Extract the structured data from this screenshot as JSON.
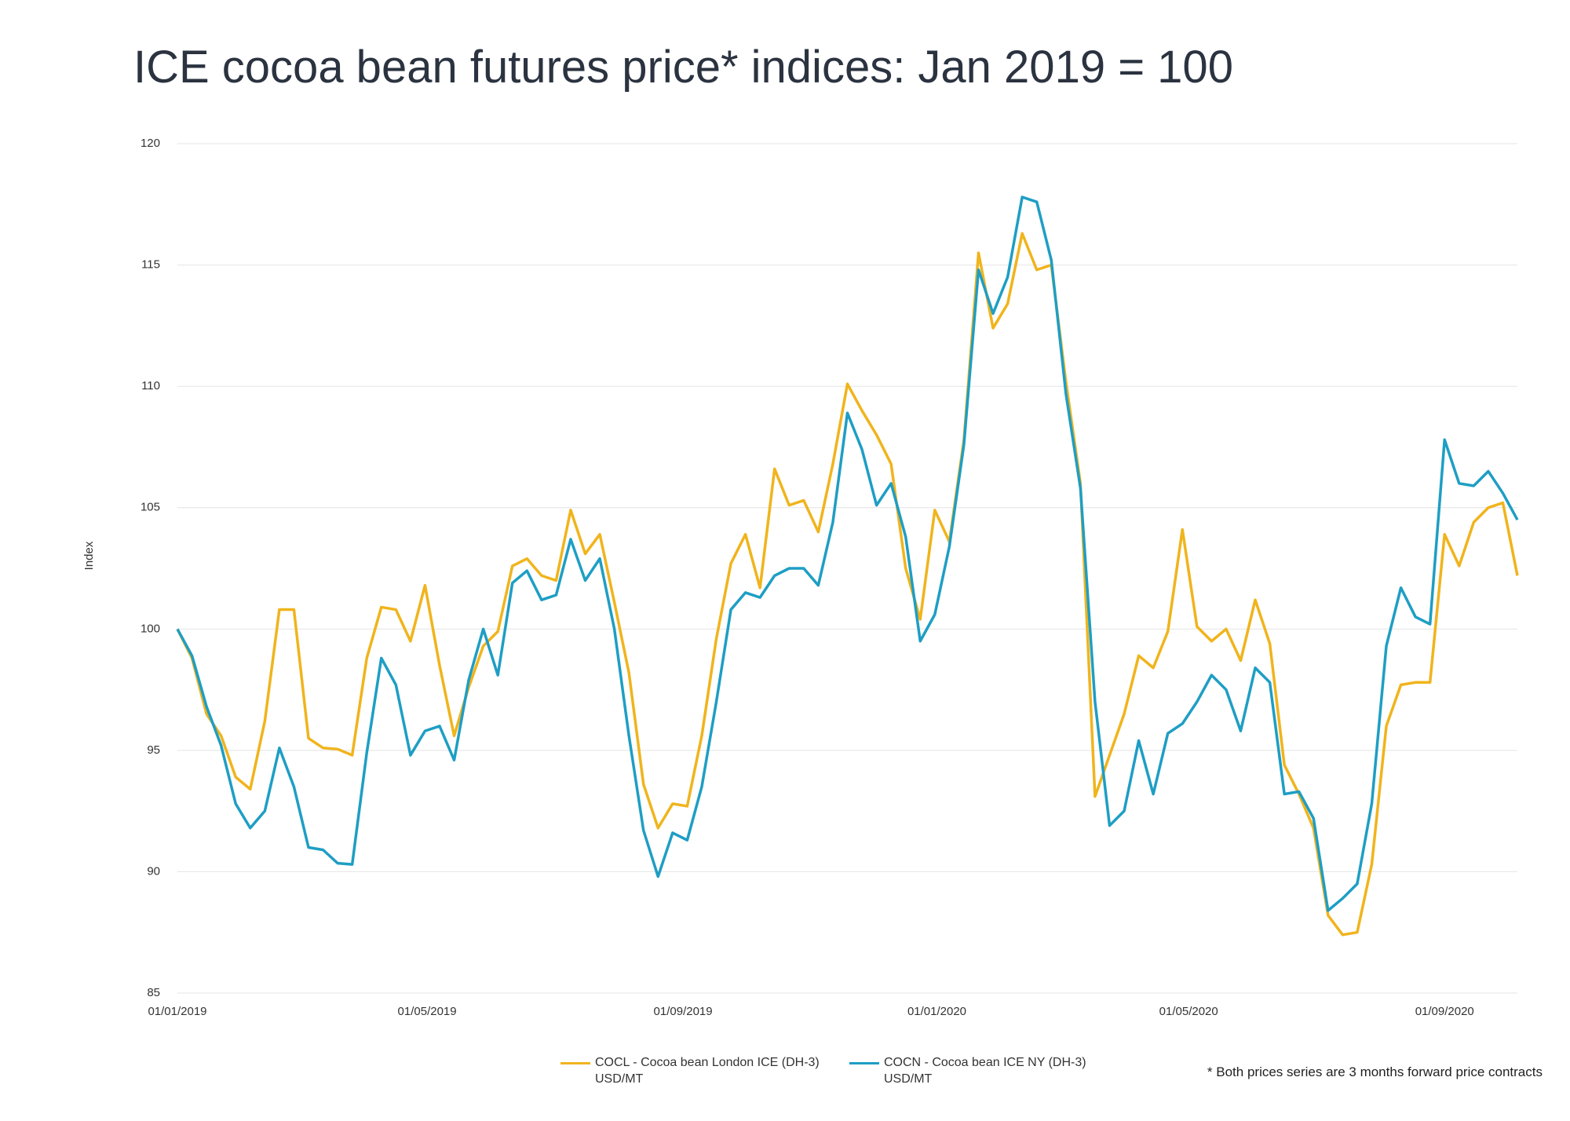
{
  "chart_data": {
    "type": "line",
    "title": "ICE cocoa bean futures price* indices: Jan 2019 = 100",
    "ylabel": "Index",
    "footnote": "* Both prices series are 3 months forward price contracts",
    "x": [
      "01/01/2019",
      "08/01/2019",
      "15/01/2019",
      "22/01/2019",
      "29/01/2019",
      "05/02/2019",
      "12/02/2019",
      "19/02/2019",
      "26/02/2019",
      "05/03/2019",
      "12/03/2019",
      "19/03/2019",
      "26/03/2019",
      "02/04/2019",
      "09/04/2019",
      "16/04/2019",
      "23/04/2019",
      "30/04/2019",
      "07/05/2019",
      "14/05/2019",
      "21/05/2019",
      "28/05/2019",
      "04/06/2019",
      "11/06/2019",
      "18/06/2019",
      "25/06/2019",
      "02/07/2019",
      "09/07/2019",
      "16/07/2019",
      "23/07/2019",
      "30/07/2019",
      "06/08/2019",
      "13/08/2019",
      "20/08/2019",
      "27/08/2019",
      "03/09/2019",
      "10/09/2019",
      "17/09/2019",
      "24/09/2019",
      "01/10/2019",
      "08/10/2019",
      "15/10/2019",
      "22/10/2019",
      "29/10/2019",
      "05/11/2019",
      "12/11/2019",
      "19/11/2019",
      "26/11/2019",
      "03/12/2019",
      "10/12/2019",
      "17/12/2019",
      "24/12/2019",
      "31/12/2019",
      "07/01/2020",
      "14/01/2020",
      "21/01/2020",
      "28/01/2020",
      "04/02/2020",
      "11/02/2020",
      "18/02/2020",
      "25/02/2020",
      "03/03/2020",
      "10/03/2020",
      "17/03/2020",
      "24/03/2020",
      "31/03/2020",
      "07/04/2020",
      "14/04/2020",
      "21/04/2020",
      "28/04/2020",
      "05/05/2020",
      "12/05/2020",
      "19/05/2020",
      "26/05/2020",
      "02/06/2020",
      "09/06/2020",
      "16/06/2020",
      "23/06/2020",
      "30/06/2020",
      "07/07/2020",
      "14/07/2020",
      "21/07/2020",
      "28/07/2020",
      "04/08/2020",
      "11/08/2020",
      "18/08/2020",
      "25/08/2020",
      "01/09/2020",
      "08/09/2020",
      "15/09/2020",
      "22/09/2020",
      "29/09/2020",
      "06/10/2020"
    ],
    "series": [
      {
        "name": "COCL - Cocoa bean London ICE (DH-3)\nUSD/MT",
        "color": "#f0b41c",
        "values": [
          100,
          98.8,
          96.5,
          95.6,
          93.9,
          93.4,
          96.2,
          100.8,
          100.8,
          95.5,
          95.1,
          95.05,
          94.8,
          98.8,
          100.9,
          100.8,
          99.5,
          101.8,
          98.5,
          95.6,
          97.6,
          99.3,
          99.9,
          102.6,
          102.9,
          102.2,
          102.0,
          104.9,
          103.1,
          103.9,
          101.1,
          98.2,
          93.6,
          91.8,
          92.8,
          92.7,
          95.6,
          99.6,
          102.7,
          103.9,
          101.7,
          106.6,
          105.1,
          105.3,
          104.0,
          106.8,
          110.1,
          109.0,
          108.0,
          106.8,
          102.5,
          100.4,
          104.9,
          103.6,
          107.8,
          115.5,
          112.4,
          113.4,
          116.3,
          114.8,
          115.0,
          110.2,
          106.0,
          93.1,
          94.8,
          96.5,
          98.9,
          98.4,
          99.9,
          104.1,
          100.1,
          99.5,
          100.0,
          98.7,
          101.2,
          99.4,
          94.4,
          93.2,
          91.8,
          88.2,
          87.4,
          87.5,
          90.3,
          96.0,
          97.7,
          97.8,
          97.8,
          103.9,
          102.6,
          104.4,
          105.0,
          105.2,
          102.2
        ]
      },
      {
        "name": "COCN - Cocoa bean ICE  NY (DH-3)\nUSD/MT",
        "color": "#1e9ec4",
        "values": [
          100,
          98.9,
          96.8,
          95.2,
          92.8,
          91.8,
          92.5,
          95.1,
          93.5,
          91.0,
          90.9,
          90.35,
          90.3,
          94.9,
          98.8,
          97.7,
          94.8,
          95.8,
          96.0,
          94.6,
          97.9,
          100.0,
          98.1,
          101.9,
          102.4,
          101.2,
          101.4,
          103.7,
          102.0,
          102.9,
          100.0,
          95.6,
          91.7,
          89.8,
          91.6,
          91.3,
          93.5,
          97.0,
          100.8,
          101.5,
          101.3,
          102.2,
          102.5,
          102.5,
          101.8,
          104.4,
          108.9,
          107.4,
          105.1,
          106.0,
          103.8,
          99.5,
          100.6,
          103.4,
          107.6,
          114.8,
          113.0,
          114.5,
          117.8,
          117.6,
          115.2,
          109.7,
          105.8,
          97.0,
          91.9,
          92.5,
          95.4,
          93.2,
          95.7,
          96.1,
          97.0,
          98.1,
          97.5,
          95.8,
          98.4,
          97.8,
          93.2,
          93.3,
          92.2,
          88.4,
          88.9,
          89.5,
          92.8,
          99.3,
          101.7,
          100.5,
          100.2,
          107.8,
          106.0,
          105.9,
          106.5,
          105.6,
          104.5
        ]
      }
    ],
    "xlim": [
      "01/01/2019",
      "06/10/2020"
    ],
    "xticks": [
      "01/01/2019",
      "01/05/2019",
      "01/09/2019",
      "01/01/2020",
      "01/05/2020",
      "01/09/2020"
    ],
    "ylim": [
      85,
      120
    ],
    "yticks": [
      85,
      90,
      95,
      100,
      105,
      110,
      115,
      120
    ],
    "grid": true,
    "legend": "bottom"
  }
}
